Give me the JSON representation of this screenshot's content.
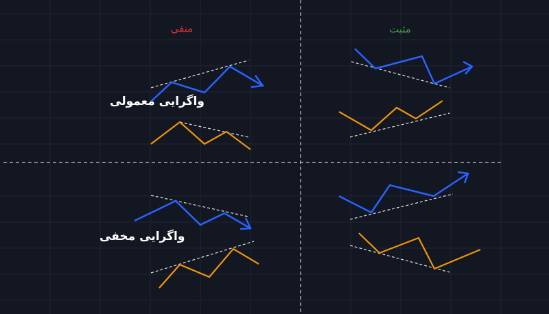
{
  "columns": {
    "negative": "منفی",
    "positive": "مثبت"
  },
  "rows": {
    "regular": "واگرایی معمولی",
    "hidden": "واگرایی مخفی"
  }
}
